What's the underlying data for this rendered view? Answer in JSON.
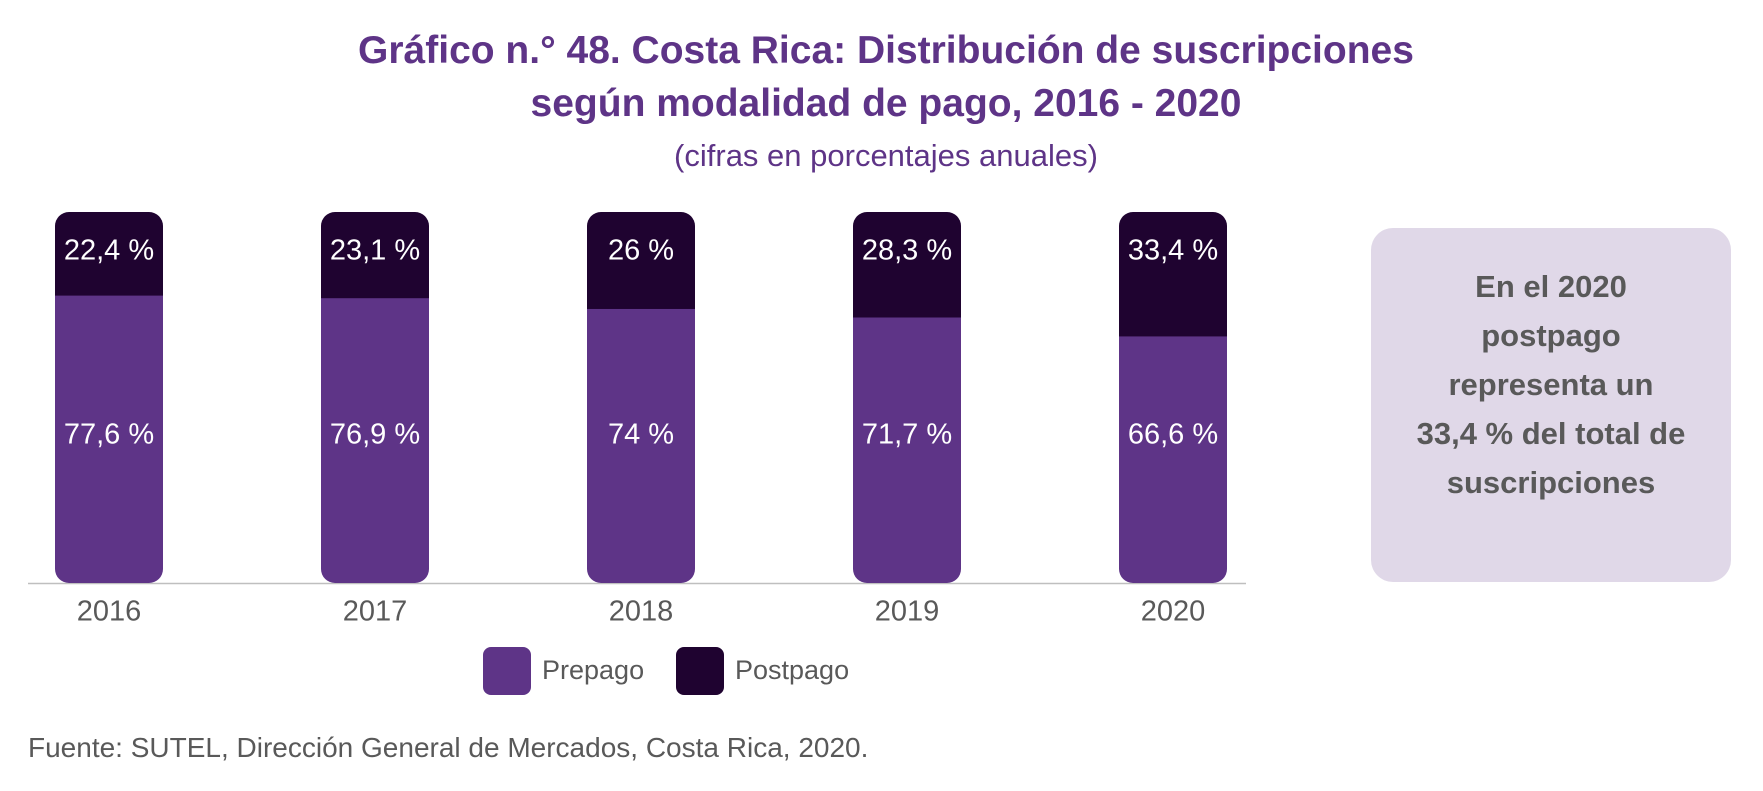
{
  "chart_data": {
    "type": "bar",
    "stacked": true,
    "title": "Gráfico n.° 48. Costa Rica: Distribución de suscripciones según modalidad de pago, 2016 - 2020",
    "title_lines": [
      "Gráfico n.° 48. Costa Rica: Distribución de suscripciones",
      "según modalidad de pago, 2016 - 2020"
    ],
    "subtitle": "(cifras en porcentajes anuales)",
    "categories": [
      "2016",
      "2017",
      "2018",
      "2019",
      "2020"
    ],
    "series": [
      {
        "name": "Prepago",
        "values": [
          77.6,
          76.9,
          74,
          71.7,
          66.6
        ],
        "labels": [
          "77,6 %",
          "76,9 %",
          "74 %",
          "71,7 %",
          "66,6 %"
        ],
        "color": "#5e3487"
      },
      {
        "name": "Postpago",
        "values": [
          22.4,
          23.1,
          26,
          28.3,
          33.4
        ],
        "labels": [
          "22,4 %",
          "23,1 %",
          "26 %",
          "28,3 %",
          "33,4 %"
        ],
        "color": "#1f0330"
      }
    ],
    "ylim": [
      0,
      100
    ],
    "xlabel": "",
    "ylabel": "",
    "legend_position": "bottom",
    "grid": false
  },
  "callout": {
    "lines": [
      "En el 2020",
      "postpago",
      "representa un",
      "33,4 % del total de",
      "suscripciones"
    ]
  },
  "source": "Fuente: SUTEL, Dirección General de Mercados, Costa Rica, 2020.",
  "colors": {
    "accent": "#5e3487",
    "dark": "#1f0330",
    "callout_bg": "#e0d8e8",
    "muted_text": "#595959",
    "axis": "#bfbfbf"
  }
}
